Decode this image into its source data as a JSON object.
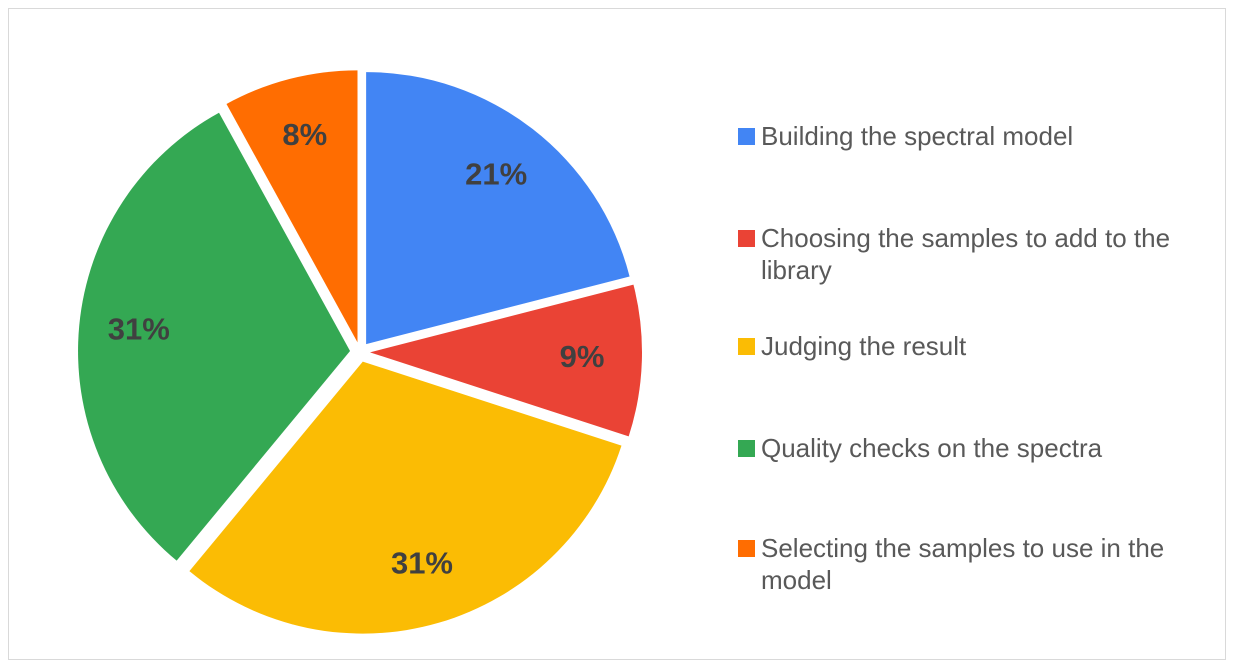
{
  "chart_data": {
    "type": "pie",
    "categories": [
      "Building the spectral model",
      "Choosing the samples to add to the library",
      "Judging the result",
      "Quality checks on the spectra",
      "Selecting the samples to use in the model"
    ],
    "values": [
      21,
      9,
      31,
      31,
      8
    ],
    "value_labels": [
      "21%",
      "9%",
      "31%",
      "31%",
      "8%"
    ],
    "colors": [
      "#4285f4",
      "#ea4335",
      "#fbbc04",
      "#34a853",
      "#ff6d01"
    ],
    "legend": "right"
  }
}
